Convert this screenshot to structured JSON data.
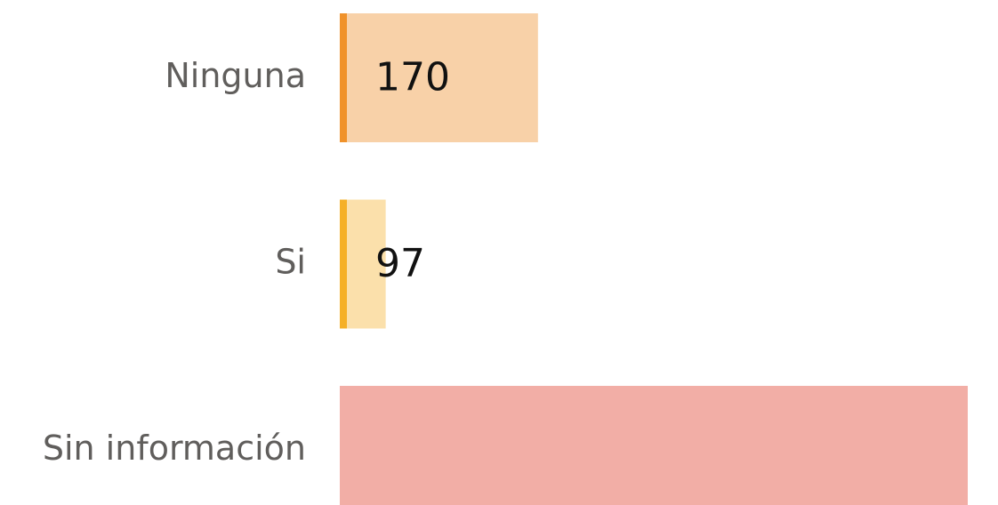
{
  "chart_data": {
    "type": "bar",
    "orientation": "horizontal",
    "categories": [
      "Ninguna",
      "Si",
      "Sin información"
    ],
    "values": [
      170,
      97,
      376
    ],
    "value_labels": [
      "170",
      "97",
      null
    ],
    "colors": [
      "#f8d1a8",
      "#fbe0ab",
      "#f2aea6"
    ],
    "accent_colors": [
      "#f0922a",
      "#f5b027",
      "#f2aea6"
    ],
    "xlim": [
      75,
      376
    ]
  }
}
